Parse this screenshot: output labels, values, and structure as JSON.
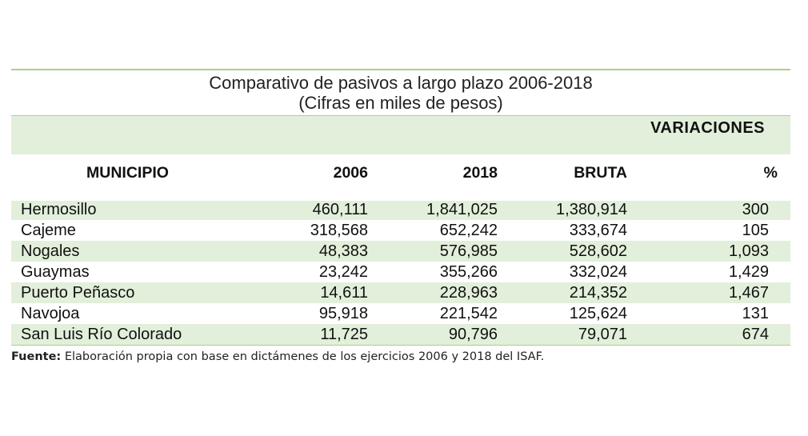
{
  "title": "Comparativo de pasivos a largo plazo 2006-2018",
  "subtitle": "(Cifras en miles de pesos)",
  "group_header": "VARIACIONES",
  "columns": {
    "municipio": "MUNICIPIO",
    "y2006": "2006",
    "y2018": "2018",
    "bruta": "BRUTA",
    "pct": "%"
  },
  "rows": [
    {
      "name": "Hermosillo",
      "v2006": "460,111",
      "v2018": "1,841,025",
      "bruta": "1,380,914",
      "pct": "300"
    },
    {
      "name": "Cajeme",
      "v2006": "318,568",
      "v2018": "652,242",
      "bruta": "333,674",
      "pct": "105"
    },
    {
      "name": "Nogales",
      "v2006": "48,383",
      "v2018": "576,985",
      "bruta": "528,602",
      "pct": "1,093"
    },
    {
      "name": "Guaymas",
      "v2006": "23,242",
      "v2018": "355,266",
      "bruta": "332,024",
      "pct": "1,429"
    },
    {
      "name": "Puerto Peñasco",
      "v2006": "14,611",
      "v2018": "228,963",
      "bruta": "214,352",
      "pct": "1,467"
    },
    {
      "name": "Navojoa",
      "v2006": "95,918",
      "v2018": "221,542",
      "bruta": "125,624",
      "pct": "131"
    },
    {
      "name": "San Luis Río Colorado",
      "v2006": "11,725",
      "v2018": "90,796",
      "bruta": "79,071",
      "pct": "674"
    }
  ],
  "source": {
    "label": "Fuente:",
    "text": " Elaboración propia con base en dictámenes de los ejercicios 2006 y 2018 del ISAF."
  },
  "colors": {
    "band": "#e2efda",
    "rule": "#a9d18e"
  }
}
